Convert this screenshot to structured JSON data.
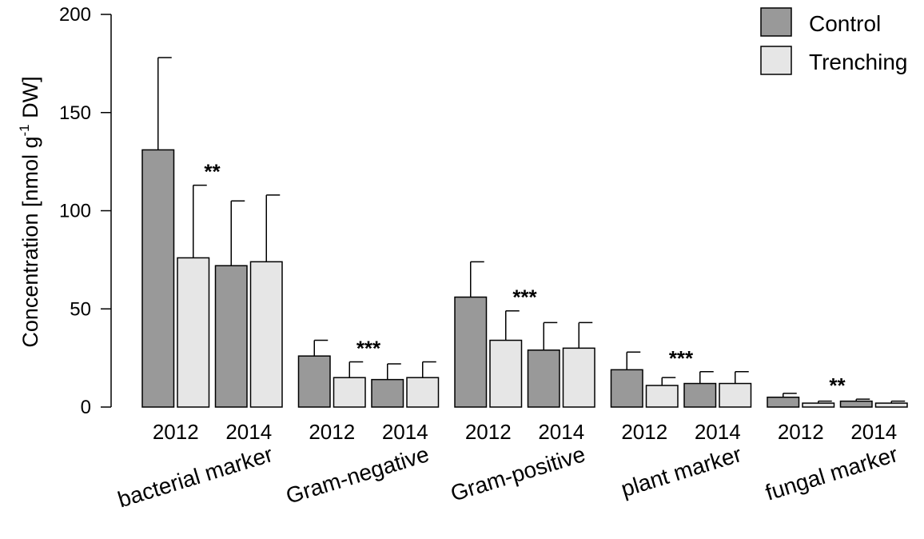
{
  "chart_data": {
    "type": "bar",
    "title": "",
    "xlabel": "",
    "ylabel_main": "Concentration [nmol g",
    "ylabel_sup": "-1",
    "ylabel_tail": " DW]",
    "ylim": [
      0,
      200
    ],
    "yticks": [
      0,
      50,
      100,
      150,
      200
    ],
    "legend_position": "top-right",
    "series": [
      {
        "name": "Control",
        "color": "#999999"
      },
      {
        "name": "Trenching",
        "color": "#e6e6e6"
      }
    ],
    "groups": [
      {
        "label": "bacterial marker",
        "significance": "**",
        "years": [
          {
            "year": "2012",
            "values": [
              131,
              76
            ],
            "errors": [
              178,
              113
            ]
          },
          {
            "year": "2014",
            "values": [
              72,
              74
            ],
            "errors": [
              105,
              108
            ]
          }
        ]
      },
      {
        "label": "Gram-negative",
        "significance": "***",
        "years": [
          {
            "year": "2012",
            "values": [
              26,
              15
            ],
            "errors": [
              34,
              23
            ]
          },
          {
            "year": "2014",
            "values": [
              14,
              15
            ],
            "errors": [
              22,
              23
            ]
          }
        ]
      },
      {
        "label": "Gram-positive",
        "significance": "***",
        "years": [
          {
            "year": "2012",
            "values": [
              56,
              34
            ],
            "errors": [
              74,
              49
            ]
          },
          {
            "year": "2014",
            "values": [
              29,
              30
            ],
            "errors": [
              43,
              43
            ]
          }
        ]
      },
      {
        "label": "plant marker",
        "significance": "***",
        "years": [
          {
            "year": "2012",
            "values": [
              19,
              11
            ],
            "errors": [
              28,
              15
            ]
          },
          {
            "year": "2014",
            "values": [
              12,
              12
            ],
            "errors": [
              18,
              18
            ]
          }
        ]
      },
      {
        "label": "fungal marker",
        "significance": "**",
        "years": [
          {
            "year": "2012",
            "values": [
              5,
              2
            ],
            "errors": [
              7,
              3
            ]
          },
          {
            "year": "2014",
            "values": [
              3,
              2
            ],
            "errors": [
              4,
              3
            ]
          }
        ]
      }
    ]
  }
}
